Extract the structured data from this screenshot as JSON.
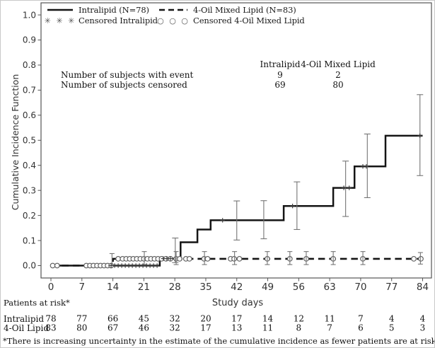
{
  "figure": {
    "background": "#ffffff",
    "frame_color": "#555555",
    "line_color": "#141414",
    "error_bar_color": "#757575"
  },
  "legend": {
    "items": [
      {
        "label": "Intralipid (N=78)",
        "marker": "solid-line"
      },
      {
        "label": "4-Oil Mixed Lipid (N=83)",
        "marker": "dashed-line"
      },
      {
        "label": "Censored Intralipid",
        "marker": "asterisks"
      },
      {
        "label": "Censored 4-Oil Mixed Lipid",
        "marker": "circles"
      }
    ],
    "asterisk_glyphs": "✳ ✳ ✳",
    "circle_glyphs": "○ ○ ○"
  },
  "inset_table": {
    "col_headers": [
      "Intralipid",
      "4-Oil Mixed Lipid"
    ],
    "rows": [
      {
        "label": "Number of subjects with event",
        "values": [
          "9",
          "2"
        ]
      },
      {
        "label": "Number of subjects censored",
        "values": [
          "69",
          "80"
        ]
      }
    ]
  },
  "chart_data": {
    "type": "line",
    "subtype": "step-cumulative-incidence",
    "xlabel": "Study days",
    "ylabel": "Cumulative Incidence Function",
    "xlim": [
      0,
      84
    ],
    "ylim": [
      0.0,
      1.0
    ],
    "xticks": [
      0,
      7,
      14,
      21,
      28,
      35,
      42,
      49,
      56,
      63,
      70,
      77,
      84
    ],
    "yticks": [
      0.0,
      0.1,
      0.2,
      0.3,
      0.4,
      0.5,
      0.6,
      0.7,
      0.8,
      0.9,
      1.0
    ],
    "grid": false,
    "legend_position": "top-left-inside",
    "series": [
      {
        "name": "Intralipid (N=78)",
        "line": "solid",
        "censor_marker": "plus",
        "step_points": [
          [
            0,
            0
          ],
          [
            24.6,
            0.028
          ],
          [
            29.3,
            0.093
          ],
          [
            33.1,
            0.144
          ],
          [
            36.1,
            0.181
          ],
          [
            52.6,
            0.238
          ],
          [
            63.8,
            0.31
          ],
          [
            68.6,
            0.396
          ],
          [
            75.6,
            0.518
          ],
          [
            84,
            0.518
          ]
        ],
        "censor_days": [
          13.6,
          14.4,
          15.2,
          16.0,
          16.8,
          17.6,
          18.4,
          19.2,
          20.0,
          20.8,
          21.6,
          22.4,
          23.2,
          24.0,
          25.4,
          26.2,
          27.0,
          38.8,
          54.6,
          66.2,
          67.4,
          70.5,
          71.3,
          83.4
        ],
        "error_bars": [
          {
            "x": 28.1,
            "lo": 0.012,
            "hi": 0.11
          },
          {
            "x": 42.0,
            "lo": 0.102,
            "hi": 0.258
          },
          {
            "x": 48.1,
            "lo": 0.107,
            "hi": 0.259
          },
          {
            "x": 55.6,
            "lo": 0.144,
            "hi": 0.334
          },
          {
            "x": 66.6,
            "lo": 0.196,
            "hi": 0.417
          },
          {
            "x": 71.5,
            "lo": 0.271,
            "hi": 0.525
          },
          {
            "x": 83.4,
            "lo": 0.359,
            "hi": 0.682
          }
        ]
      },
      {
        "name": "4-Oil Mixed Lipid (N=83)",
        "line": "dashed",
        "censor_marker": "circle",
        "step_points": [
          [
            0,
            0
          ],
          [
            14,
            0.027
          ],
          [
            84,
            0.027
          ]
        ],
        "censor_days": [
          0.4,
          1.4,
          8.0,
          8.8,
          9.6,
          10.4,
          11.2,
          12.0,
          12.8,
          13.6,
          15.2,
          16.2,
          17.0,
          17.8,
          18.6,
          19.4,
          20.2,
          21.0,
          21.8,
          22.6,
          23.4,
          24.2,
          25.0,
          26.0,
          27.0,
          28.3,
          29.1,
          30.5,
          31.3,
          34.6,
          35.4,
          40.6,
          41.4,
          42.6,
          48.9,
          54.0,
          57.7,
          63.8,
          70.5,
          82.0,
          83.6
        ],
        "error_bars": [
          {
            "x": 13.8,
            "lo": 0.0,
            "hi": 0.048
          },
          {
            "x": 21.1,
            "lo": 0.004,
            "hi": 0.056
          },
          {
            "x": 28.3,
            "lo": 0.004,
            "hi": 0.056
          },
          {
            "x": 34.7,
            "lo": 0.004,
            "hi": 0.056
          },
          {
            "x": 41.5,
            "lo": 0.004,
            "hi": 0.056
          },
          {
            "x": 48.9,
            "lo": 0.004,
            "hi": 0.056
          },
          {
            "x": 54.0,
            "lo": 0.004,
            "hi": 0.056
          },
          {
            "x": 57.7,
            "lo": 0.004,
            "hi": 0.056
          },
          {
            "x": 63.8,
            "lo": 0.004,
            "hi": 0.056
          },
          {
            "x": 70.5,
            "lo": 0.004,
            "hi": 0.056
          },
          {
            "x": 83.5,
            "lo": 0.006,
            "hi": 0.052
          }
        ]
      }
    ]
  },
  "risk_table": {
    "title": "Patients at risk*",
    "rows": [
      {
        "label": "Intralipid",
        "counts": [
          78,
          77,
          66,
          45,
          32,
          20,
          17,
          14,
          12,
          11,
          7,
          4,
          4
        ]
      },
      {
        "label": "4-Oil Lipid",
        "counts": [
          83,
          80,
          67,
          46,
          32,
          17,
          13,
          11,
          8,
          7,
          6,
          5,
          3
        ]
      }
    ]
  },
  "footnote": {
    "text": "*There is increasing uncertainty in the estimate of the cumulative incidence as fewer patients are at risk."
  }
}
